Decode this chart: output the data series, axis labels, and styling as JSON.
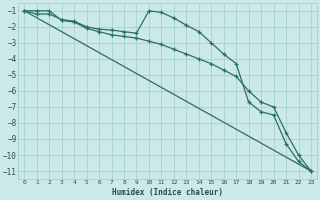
{
  "xlabel": "Humidex (Indice chaleur)",
  "xlim": [
    -0.5,
    23.5
  ],
  "ylim": [
    -11.5,
    -0.5
  ],
  "yticks": [
    -1,
    -2,
    -3,
    -4,
    -5,
    -6,
    -7,
    -8,
    -9,
    -10,
    -11
  ],
  "xticks": [
    0,
    1,
    2,
    3,
    4,
    5,
    6,
    7,
    8,
    9,
    10,
    11,
    12,
    13,
    14,
    15,
    16,
    17,
    18,
    19,
    20,
    21,
    22,
    23
  ],
  "background_color": "#cce9e9",
  "grid_color": "#a0cccc",
  "line_color": "#2a6e68",
  "line1_x": [
    0,
    1,
    2,
    3,
    4,
    5,
    6,
    7,
    8,
    9,
    10,
    11,
    12,
    13,
    14,
    15,
    16,
    17,
    18,
    19,
    20,
    21,
    22,
    23
  ],
  "line1_y": [
    -1.0,
    -1.2,
    -1.2,
    -1.55,
    -1.65,
    -2.0,
    -2.15,
    -2.2,
    -2.3,
    -2.4,
    -1.0,
    -1.1,
    -1.45,
    -1.9,
    -2.3,
    -3.0,
    -3.7,
    -4.3,
    -6.7,
    -7.3,
    -7.5,
    -9.3,
    -10.4,
    -11.0
  ],
  "line2_x": [
    0,
    1,
    2,
    3,
    4,
    5,
    6,
    7,
    8,
    9,
    10,
    11,
    12,
    13,
    14,
    15,
    16,
    17,
    18,
    19,
    20,
    21,
    22,
    23
  ],
  "line2_y": [
    -1.0,
    -1.0,
    -1.0,
    -1.6,
    -1.7,
    -2.1,
    -2.3,
    -2.5,
    -2.6,
    -2.7,
    -2.9,
    -3.1,
    -3.4,
    -3.7,
    -4.0,
    -4.3,
    -4.7,
    -5.1,
    -6.0,
    -6.7,
    -7.0,
    -8.6,
    -10.0,
    -11.0
  ],
  "line3_x": [
    0,
    23
  ],
  "line3_y": [
    -1.0,
    -11.0
  ]
}
